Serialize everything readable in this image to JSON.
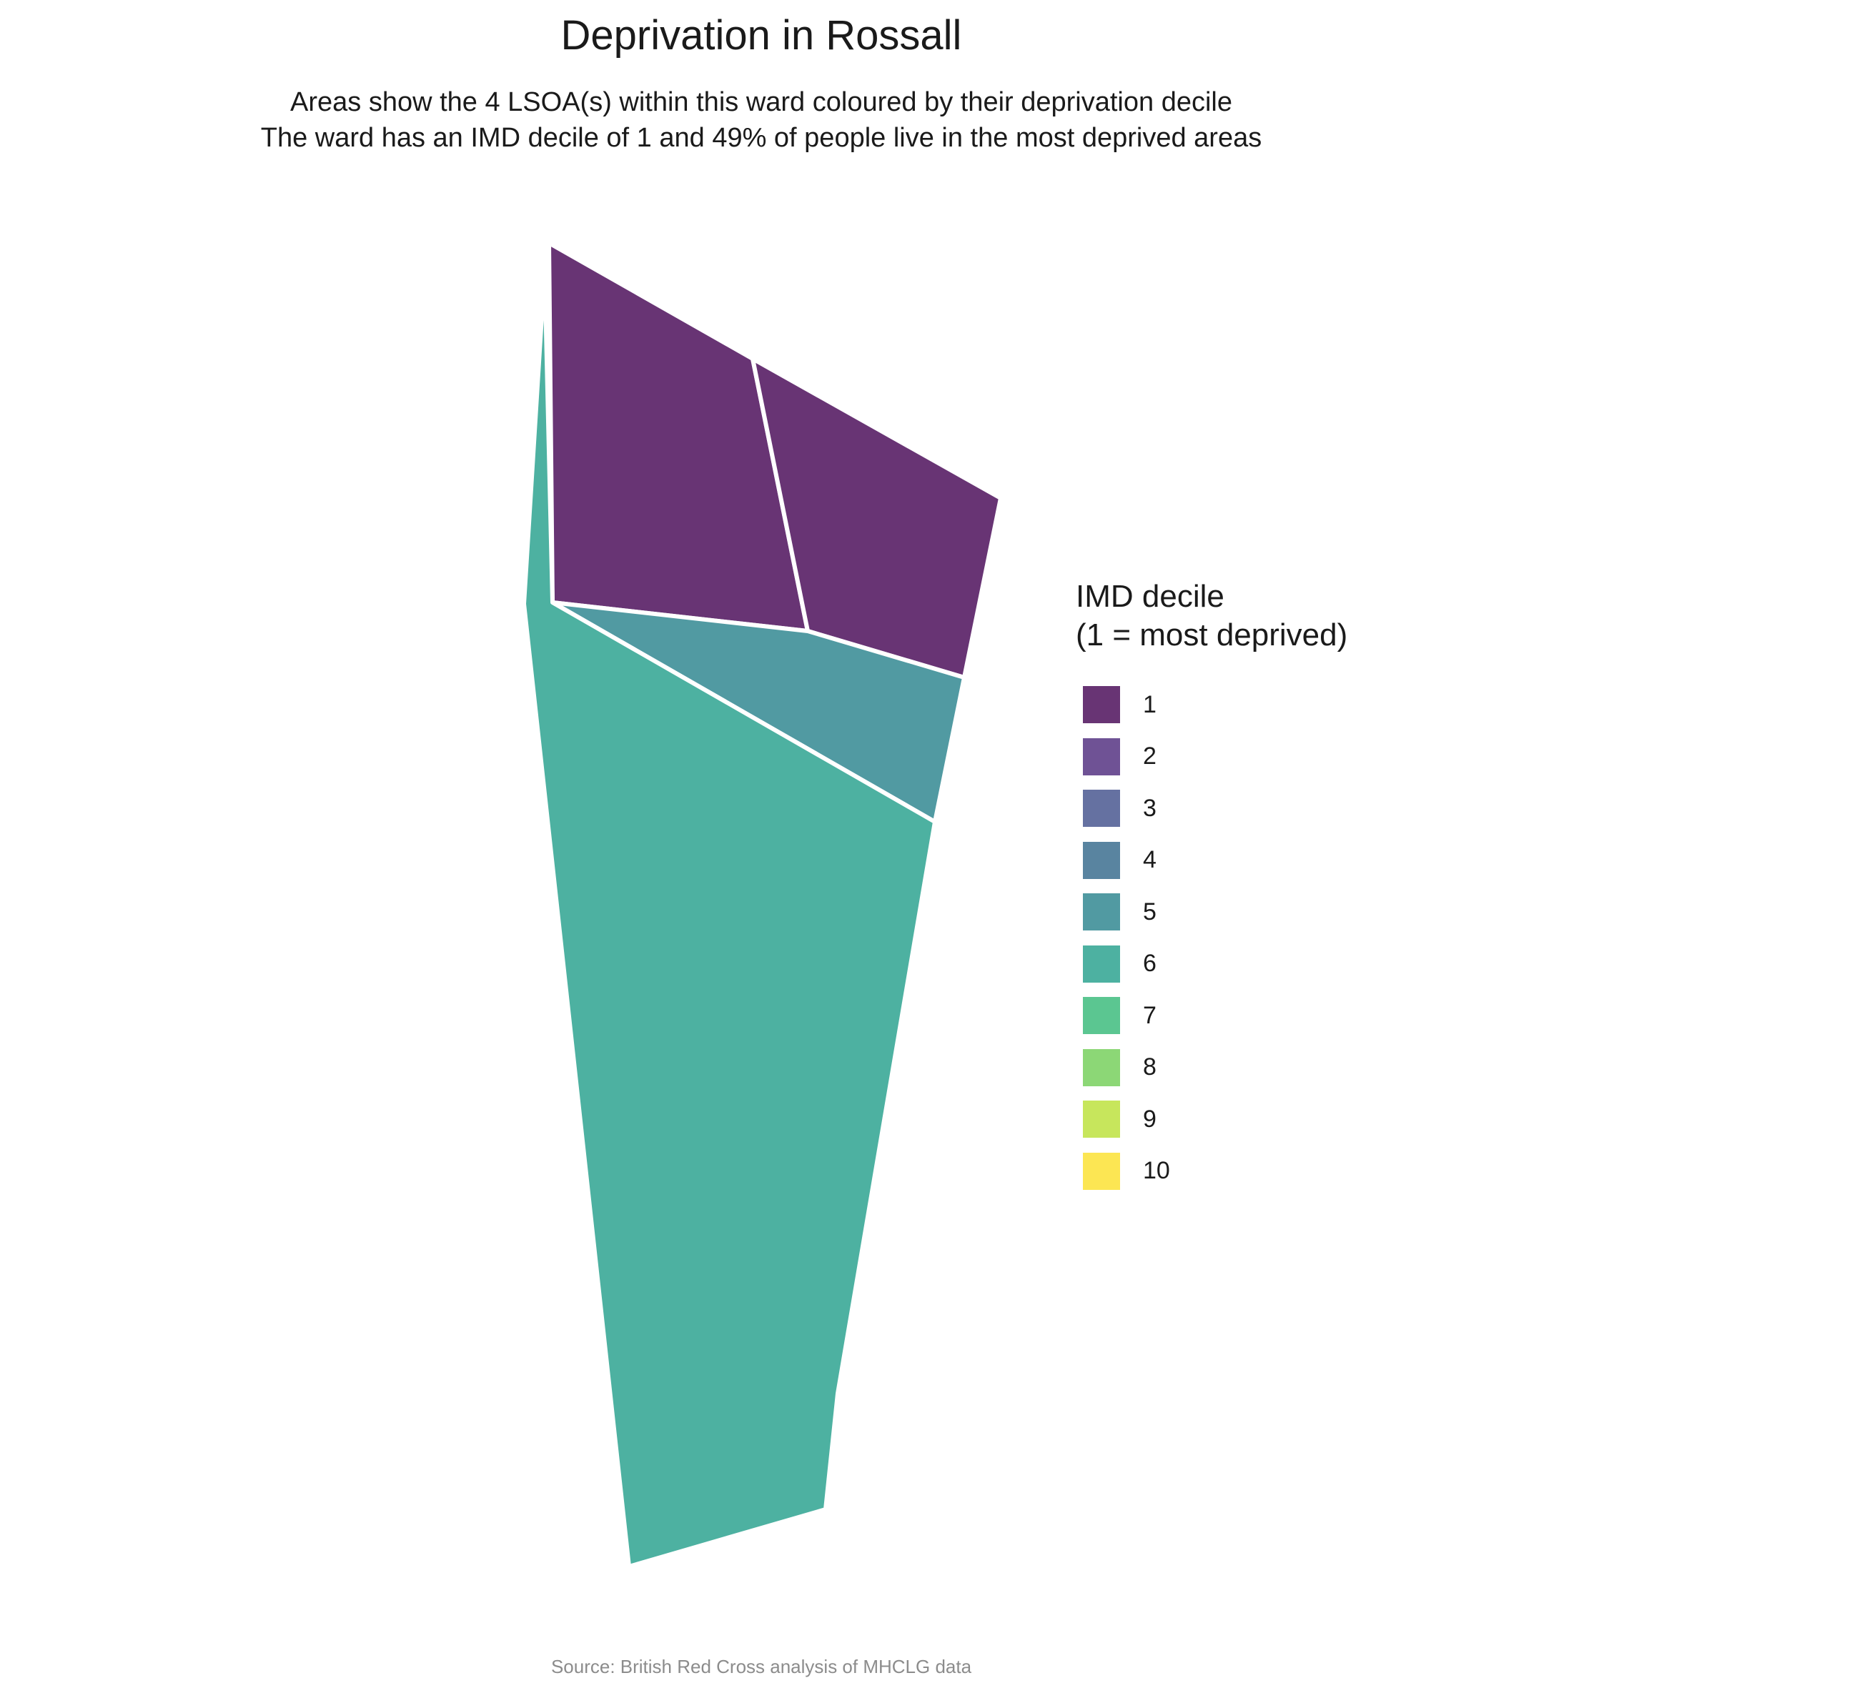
{
  "title": "Deprivation in Rossall",
  "subtitle_line1": "Areas show the 4 LSOA(s) within this ward coloured by their deprivation decile",
  "subtitle_line2": "The ward has an IMD decile of 1 and 49% of people live in the most deprived areas",
  "legend": {
    "title_line1": "IMD decile",
    "title_line2": "(1 = most deprived)",
    "items": [
      {
        "label": "1",
        "color": "#683474"
      },
      {
        "label": "2",
        "color": "#6f5295"
      },
      {
        "label": "3",
        "color": "#6571a1"
      },
      {
        "label": "4",
        "color": "#5984a0"
      },
      {
        "label": "5",
        "color": "#519aa2"
      },
      {
        "label": "6",
        "color": "#4db1a1"
      },
      {
        "label": "7",
        "color": "#5bc691"
      },
      {
        "label": "8",
        "color": "#8cd776"
      },
      {
        "label": "9",
        "color": "#c7e65c"
      },
      {
        "label": "10",
        "color": "#fce653"
      }
    ]
  },
  "lsoas": [
    {
      "decile": 1,
      "color": "#683474"
    },
    {
      "decile": 1,
      "color": "#683474"
    },
    {
      "decile": 5,
      "color": "#519aa2"
    },
    {
      "decile": 6,
      "color": "#4db1a1"
    }
  ],
  "source": "Source: British Red Cross analysis of MHCLG data"
}
